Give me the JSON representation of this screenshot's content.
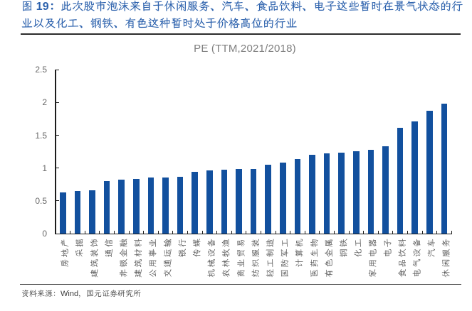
{
  "figure": {
    "caption_lines": [
      "图 19：此次股市泡沫来自于休闲服务、汽车、食品饮料、电子这些暂时在景气状态的行",
      "业以及化工、钢铁、有色这种暂时处于价格高位的行业"
    ],
    "source_note": "资料来源：Wind，国元证券研究所"
  },
  "chart_data": {
    "type": "bar",
    "title": "PE (TTM,2021/2018)",
    "categories": [
      "房地产",
      "采掘",
      "建筑装饰",
      "通信",
      "非银金融",
      "建筑材料",
      "公用事业",
      "交通运输",
      "银行",
      "传媒",
      "机械设备",
      "农林牧渔",
      "商业贸易",
      "纺织服装",
      "轻工制造",
      "国防军工",
      "计算机",
      "医药生物",
      "有色金属",
      "钢铁",
      "化工",
      "家用电器",
      "电子",
      "食品饮料",
      "电气设备",
      "汽车",
      "休闲服务"
    ],
    "values": [
      0.63,
      0.65,
      0.66,
      0.8,
      0.82,
      0.83,
      0.85,
      0.85,
      0.87,
      0.94,
      0.96,
      0.97,
      0.98,
      0.99,
      1.05,
      1.08,
      1.14,
      1.2,
      1.22,
      1.23,
      1.26,
      1.28,
      1.33,
      1.61,
      1.71,
      1.87,
      1.98
    ],
    "xlabel": "",
    "ylabel": "",
    "ylim": [
      0,
      2.5
    ],
    "yticks": [
      0,
      0.5,
      1,
      1.5,
      2,
      2.5
    ],
    "ytick_labels": [
      "0",
      "0.5",
      "1",
      "1.5",
      "2",
      "2.5"
    ],
    "grid": false,
    "legend_position": "none",
    "bar_color": "#12509e",
    "title_color": "#7f7f7f"
  }
}
